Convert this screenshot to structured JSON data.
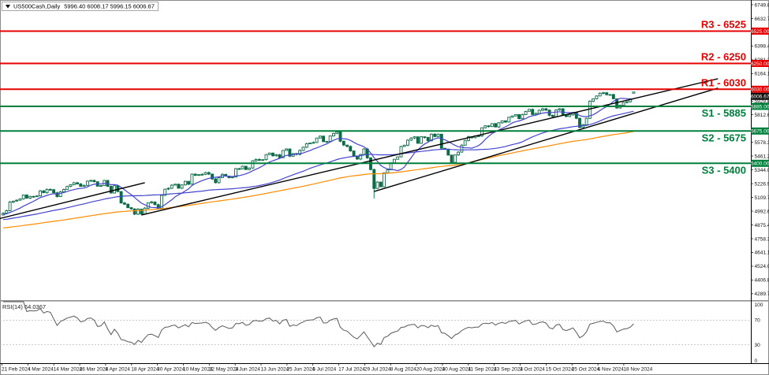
{
  "window": {
    "symbol": "US500Cash,Daily",
    "quotes": "5996.40 6008.17 5996.15 6006.67"
  },
  "colors": {
    "candle": "#0c6b47",
    "up_candle": "#ffffff",
    "resistance": "#e60000",
    "support": "#00803c",
    "ma_fast": "#4343d0",
    "ma_slow": "#4343d0",
    "ma_long": "#ff8b00",
    "trendline": "#000000",
    "rsi_line": "#5a5a5a",
    "current_badge": "#111111"
  },
  "levels": [
    {
      "id": "R3",
      "label": "R3 - 6525",
      "price": 6525,
      "badge": "6525.00",
      "color": "#e60000",
      "label_side": "above"
    },
    {
      "id": "R2",
      "label": "R2 - 6250",
      "price": 6250,
      "badge": "6250.00",
      "color": "#e60000",
      "label_side": "above"
    },
    {
      "id": "R1",
      "label": "R1 - 6030",
      "price": 6030,
      "badge": "6030.00",
      "color": "#e60000",
      "label_side": "above"
    },
    {
      "id": "S1",
      "label": "S1 - 5885",
      "price": 5885,
      "badge": "5885.00",
      "color": "#00803c",
      "label_side": "below"
    },
    {
      "id": "S2",
      "label": "S2 - 5675",
      "price": 5675,
      "badge": "5675.00",
      "color": "#00803c",
      "label_side": "below"
    },
    {
      "id": "S3",
      "label": "S3 - 5400",
      "price": 5400,
      "badge": "5400.00",
      "color": "#00803c",
      "label_side": "below"
    }
  ],
  "current_price": {
    "value": "6006.67",
    "price": 6006.67
  },
  "rsi_pane": {
    "label": "RSI(14) 64.0367",
    "value": 64.0367,
    "levels": [
      70,
      30
    ],
    "scale_labels": [
      "100",
      "70",
      "30",
      "0"
    ]
  },
  "chart_data": {
    "type": "candlestick",
    "symbol": "US500Cash",
    "timeframe": "Daily",
    "ylim": [
      4235,
      6790
    ],
    "y_ticks": [
      "6749.85",
      "6632.70",
      "6515.55",
      "6398.40",
      "6281.25",
      "6164.10",
      "6046.95",
      "5929.80",
      "5812.65",
      "5695.50",
      "5578.35",
      "5461.20",
      "5344.05",
      "5226.90",
      "5109.75",
      "4992.60",
      "4875.45",
      "4758.30",
      "4641.15",
      "4524.00",
      "4406.85",
      "4289.70"
    ],
    "x_labels": [
      "21 Feb 2024",
      "4 Mar 2024",
      "14 Mar 2024",
      "26 Mar 2024",
      "8 Apr 2024",
      "18 Apr 2024",
      "30 Apr 2024",
      "10 May 2024",
      "22 May 2024",
      "3 Jun 2024",
      "13 Jun 2024",
      "25 Jun 2024",
      "5 Jul 2024",
      "17 Jul 2024",
      "29 Jul 2024",
      "8 Aug 2024",
      "20 Aug 2024",
      "30 Aug 2024",
      "11 Sep 2024",
      "23 Sep 2024",
      "3 Oct 2024",
      "15 Oct 2024",
      "25 Oct 2024",
      "6 Nov 2024",
      "18 Nov 2024"
    ],
    "first_open": 4960,
    "closes": [
      4975,
      4996,
      5070,
      5078,
      5085,
      5096,
      5130,
      5104,
      5118,
      5117,
      5123,
      5165,
      5150,
      5178,
      5175,
      5149,
      5117,
      5157,
      5178,
      5203,
      5218,
      5234,
      5224,
      5203,
      5212,
      5248,
      5254,
      5243,
      5205,
      5211,
      5254,
      5204,
      5147,
      5209,
      5160,
      5062,
      5051,
      5022,
      5011,
      4967,
      5010,
      4967,
      5018,
      5064,
      5071,
      5048,
      5018,
      5127,
      5180,
      5187,
      5214,
      5222,
      5188,
      5216,
      5246,
      5222,
      5308,
      5297,
      5303,
      5306,
      5321,
      5308,
      5267,
      5235,
      5278,
      5306,
      5291,
      5277,
      5283,
      5354,
      5352,
      5375,
      5347,
      5360,
      5421,
      5433,
      5427,
      5431,
      5474,
      5487,
      5464,
      5473,
      5447,
      5509,
      5522,
      5460,
      5482,
      5475,
      5509,
      5537,
      5567,
      5572,
      5577,
      5615,
      5631,
      5584,
      5586,
      5633,
      5655,
      5667,
      5588,
      5555,
      5544,
      5505,
      5463,
      5436,
      5475,
      5522,
      5446,
      5347,
      5186,
      5240,
      5200,
      5319,
      5344,
      5404,
      5434,
      5455,
      5543,
      5554,
      5597,
      5615,
      5625,
      5570,
      5626,
      5620,
      5592,
      5648,
      5628,
      5648,
      5528,
      5520,
      5470,
      5408,
      5471,
      5495,
      5554,
      5595,
      5626,
      5618,
      5634,
      5633,
      5702,
      5719,
      5713,
      5738,
      5709,
      5745,
      5762,
      5751,
      5792,
      5803,
      5815,
      5780,
      5815,
      5842,
      5859,
      5815,
      5824,
      5851,
      5864,
      5853,
      5808,
      5797,
      5854,
      5864,
      5809,
      5798,
      5813,
      5833,
      5783,
      5705,
      5729,
      5783,
      5929,
      5949,
      5973,
      5996,
      6001,
      5984,
      5985,
      5949,
      5871,
      5894,
      5917,
      5924,
      5949,
      6006.67
    ],
    "overrides": {
      "110": {
        "l": 5100
      }
    },
    "last_ohlc": {
      "open": 5996.4,
      "high": 6008.17,
      "low": 5996.15,
      "close": 6006.67
    },
    "moving_averages": [
      {
        "name": "ma-fast",
        "period": 10,
        "color": "#4343d0"
      },
      {
        "name": "ma-slow",
        "period": 45,
        "color": "#4343d0"
      },
      {
        "name": "ma-long",
        "period": 100,
        "color": "#ff8b00"
      }
    ],
    "trendlines": [
      {
        "from": [
          -1,
          4930
        ],
        "to": [
          42,
          5235
        ]
      },
      {
        "from": [
          41,
          4960
        ],
        "to": [
          212,
          6120
        ]
      },
      {
        "from": [
          110,
          5160
        ],
        "to": [
          212,
          6040
        ]
      }
    ],
    "resistance_levels": [
      6525,
      6250,
      6030
    ],
    "support_levels": [
      5885,
      5675,
      5400
    ]
  }
}
